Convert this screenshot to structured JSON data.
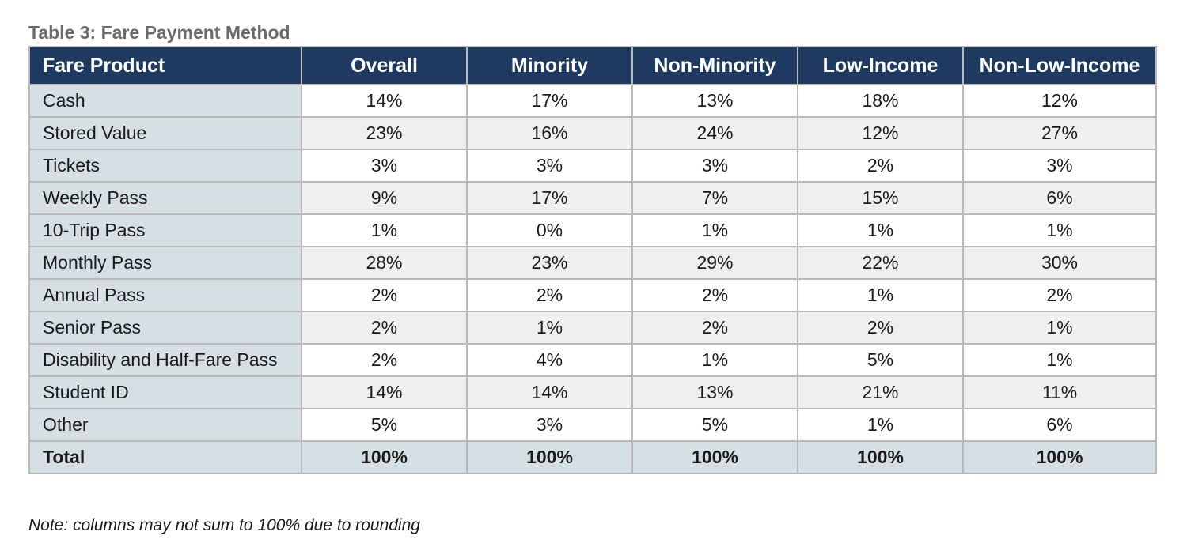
{
  "caption": "Table 3: Fare Payment Method",
  "columns": [
    "Fare Product",
    "Overall",
    "Minority",
    "Non-Minority",
    "Low-Income",
    "Non-Low-Income"
  ],
  "rows": [
    {
      "label": "Cash",
      "values": [
        "14%",
        "17%",
        "13%",
        "18%",
        "12%"
      ]
    },
    {
      "label": "Stored Value",
      "values": [
        "23%",
        "16%",
        "24%",
        "12%",
        "27%"
      ]
    },
    {
      "label": "Tickets",
      "values": [
        "3%",
        "3%",
        "3%",
        "2%",
        "3%"
      ]
    },
    {
      "label": "Weekly Pass",
      "values": [
        "9%",
        "17%",
        "7%",
        "15%",
        "6%"
      ]
    },
    {
      "label": "10-Trip Pass",
      "values": [
        "1%",
        "0%",
        "1%",
        "1%",
        "1%"
      ]
    },
    {
      "label": "Monthly Pass",
      "values": [
        "28%",
        "23%",
        "29%",
        "22%",
        "30%"
      ]
    },
    {
      "label": "Annual Pass",
      "values": [
        "2%",
        "2%",
        "2%",
        "1%",
        "2%"
      ]
    },
    {
      "label": "Senior Pass",
      "values": [
        "2%",
        "1%",
        "2%",
        "2%",
        "1%"
      ]
    },
    {
      "label": "Disability and Half-Fare Pass",
      "values": [
        "2%",
        "4%",
        "1%",
        "5%",
        "1%"
      ]
    },
    {
      "label": "Student ID",
      "values": [
        "14%",
        "14%",
        "13%",
        "21%",
        "11%"
      ]
    },
    {
      "label": "Other",
      "values": [
        "5%",
        "3%",
        "5%",
        "1%",
        "6%"
      ]
    }
  ],
  "total": {
    "label": "Total",
    "values": [
      "100%",
      "100%",
      "100%",
      "100%",
      "100%"
    ]
  },
  "note": "Note: columns may not sum to 100% due to rounding",
  "colors": {
    "header_bg": "#1f3a60",
    "label_bg": "#d6e0e4",
    "band_bg": "#efefef",
    "border": "#b9b9b9",
    "caption": "#6b6b6b"
  }
}
